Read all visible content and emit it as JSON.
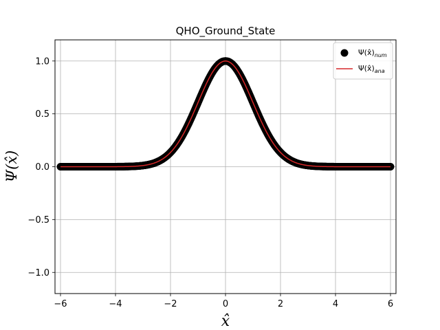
{
  "chart_data": {
    "type": "scatter",
    "title": "QHO_Ground_State",
    "xlabel": "x̂",
    "ylabel": "Ψ(x̂)",
    "xlim": [
      -6.2,
      6.2
    ],
    "ylim": [
      -1.2,
      1.2
    ],
    "x_ticks": [
      -6,
      -4,
      -2,
      0,
      2,
      4,
      6
    ],
    "x_tick_labels": [
      "−6",
      "−4",
      "−2",
      "0",
      "2",
      "4",
      "6"
    ],
    "y_ticks": [
      -1.0,
      -0.5,
      0.0,
      0.5,
      1.0
    ],
    "y_tick_labels": [
      "−1.0",
      "−0.5",
      "0.0",
      "0.5",
      "1.0"
    ],
    "grid": true,
    "legend_position": "top-right",
    "domain": [
      -6,
      6
    ],
    "series": [
      {
        "name_base": "Ψ(x̂)",
        "name_sub": "num",
        "kind": "scatter",
        "color": "#000000",
        "samples": 600,
        "function": "exp(-x^2/2)"
      },
      {
        "name_base": "Ψ(x̂)",
        "name_sub": "ana",
        "kind": "line",
        "color": "#d62728",
        "samples": 400,
        "function": "exp(-x^2/2)"
      }
    ]
  }
}
